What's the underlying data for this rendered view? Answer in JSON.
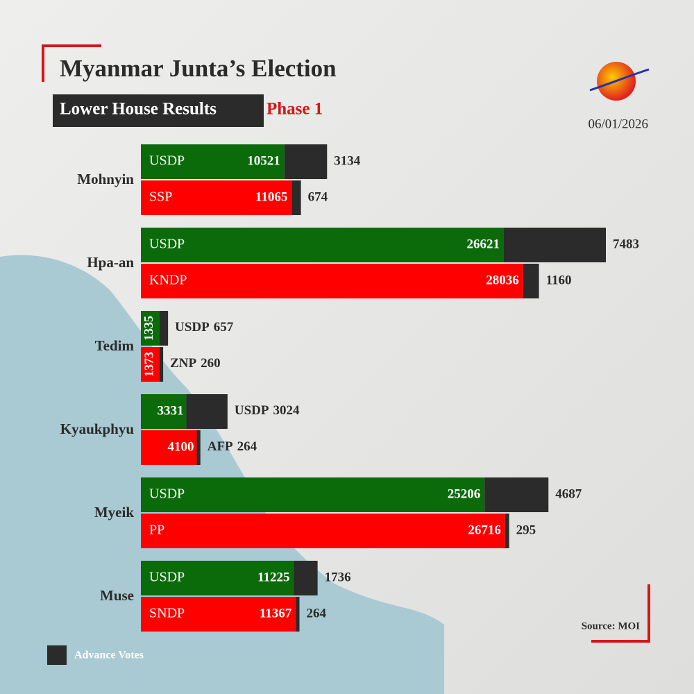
{
  "chart_data": {
    "type": "bar",
    "title": "Myanmar Junta’s Election",
    "subtitle": "Lower House Results",
    "subtitle_highlight": "Phase 1",
    "date": "06/01/2026",
    "source": "Source: MOI",
    "legend": "Advance Votes",
    "advance_color": "#2b2b2b",
    "groups": [
      {
        "name": "Mohnyin",
        "rows": [
          {
            "party": "USDP",
            "color": "#0b6b0b",
            "value": 10521,
            "advance": 3134
          },
          {
            "party": "SSP",
            "color": "#ff0000",
            "value": 11065,
            "advance": 674
          }
        ]
      },
      {
        "name": "Hpa-an",
        "rows": [
          {
            "party": "USDP",
            "color": "#0b6b0b",
            "value": 26621,
            "advance": 7483
          },
          {
            "party": "KNDP",
            "color": "#ff0000",
            "value": 28036,
            "advance": 1160
          }
        ]
      },
      {
        "name": "Tedim",
        "rows": [
          {
            "party": "USDP",
            "color": "#0b6b0b",
            "value": 1335,
            "advance": 657
          },
          {
            "party": "ZNP",
            "color": "#ff0000",
            "value": 1373,
            "advance": 260
          }
        ]
      },
      {
        "name": "Kyaukphyu",
        "rows": [
          {
            "party": "USDP",
            "color": "#0b6b0b",
            "value": 3331,
            "advance": 3024
          },
          {
            "party": "AFP",
            "color": "#ff0000",
            "value": 4100,
            "advance": 264
          }
        ]
      },
      {
        "name": "Myeik",
        "rows": [
          {
            "party": "USDP",
            "color": "#0b6b0b",
            "value": 25206,
            "advance": 4687
          },
          {
            "party": "PP",
            "color": "#ff0000",
            "value": 26716,
            "advance": 295
          }
        ]
      },
      {
        "name": "Muse",
        "rows": [
          {
            "party": "USDP",
            "color": "#0b6b0b",
            "value": 11225,
            "advance": 1736
          },
          {
            "party": "SNDP",
            "color": "#ff0000",
            "value": 11367,
            "advance": 264
          }
        ]
      }
    ]
  }
}
